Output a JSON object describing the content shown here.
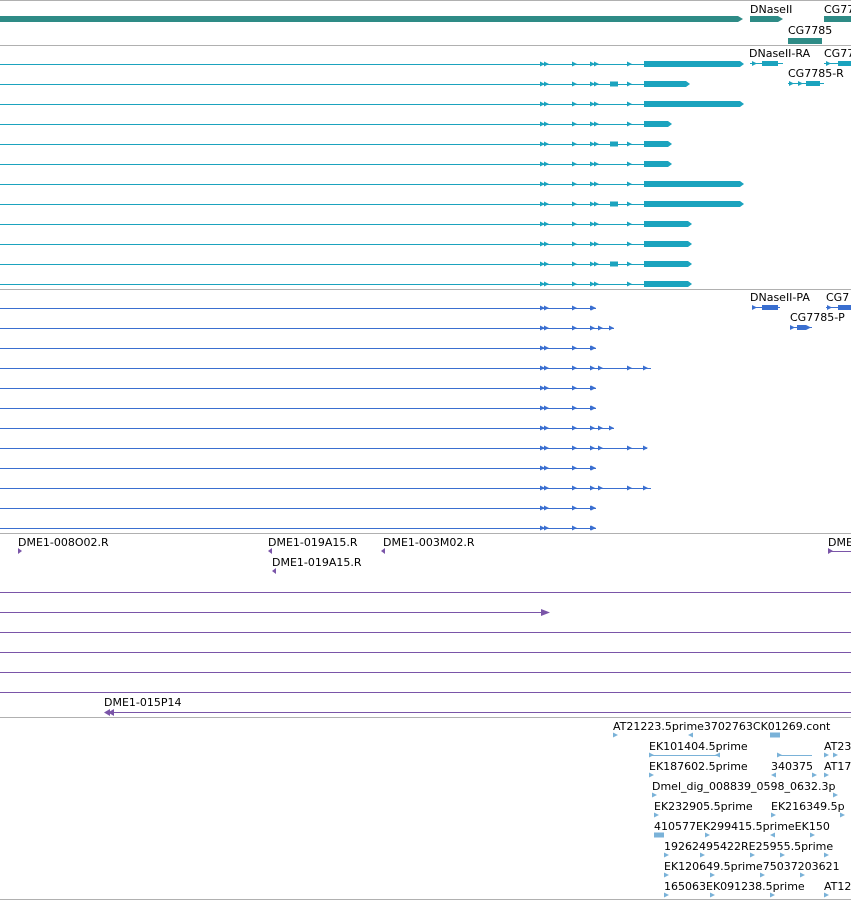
{
  "colors": {
    "gene": "#2e8b86",
    "mrna": "#1ba3be",
    "cds": "#3a6fd0",
    "clone": "#7a55a8",
    "est": "#7ab2d8",
    "divider": "#b0b0b0",
    "label": "#000000"
  },
  "tracks": {
    "gene": {
      "labels": [
        "DNaseII",
        "CG7785",
        "CG7785"
      ],
      "truncated_labels": [
        "CG77"
      ]
    },
    "mrna": {
      "labels": [
        "DNaseII-RA",
        "CG7785-R"
      ],
      "truncated_labels": [
        "CG77"
      ],
      "rows": 12
    },
    "cds": {
      "labels": [
        "DNaseII-PA",
        "CG7785-P"
      ],
      "truncated_labels": [
        "CG7"
      ],
      "rows": 12
    },
    "clone": {
      "labels": [
        "DME1-008O02.R",
        "DME1-019A15.R",
        "DME1-003M02.R",
        "DME1-019A15.R",
        "DME1-015P14"
      ],
      "truncated_labels": [
        "DME"
      ]
    },
    "est": {
      "labels": [
        "AT21223.5prime3702763CK01269.cont",
        "EK101404.5prime",
        "AT23",
        "EK187602.5prime",
        "340375",
        "AT17",
        "Dmel_dig_008839_0598_0632.3p",
        "EK232905.5prime",
        "EK216349.5p",
        "410577EK299415.5primeEK150",
        "19262495422RE25955.5prime",
        "EK120649.5prime75037203621",
        "165063EK091238.5prime",
        "AT12"
      ]
    }
  }
}
